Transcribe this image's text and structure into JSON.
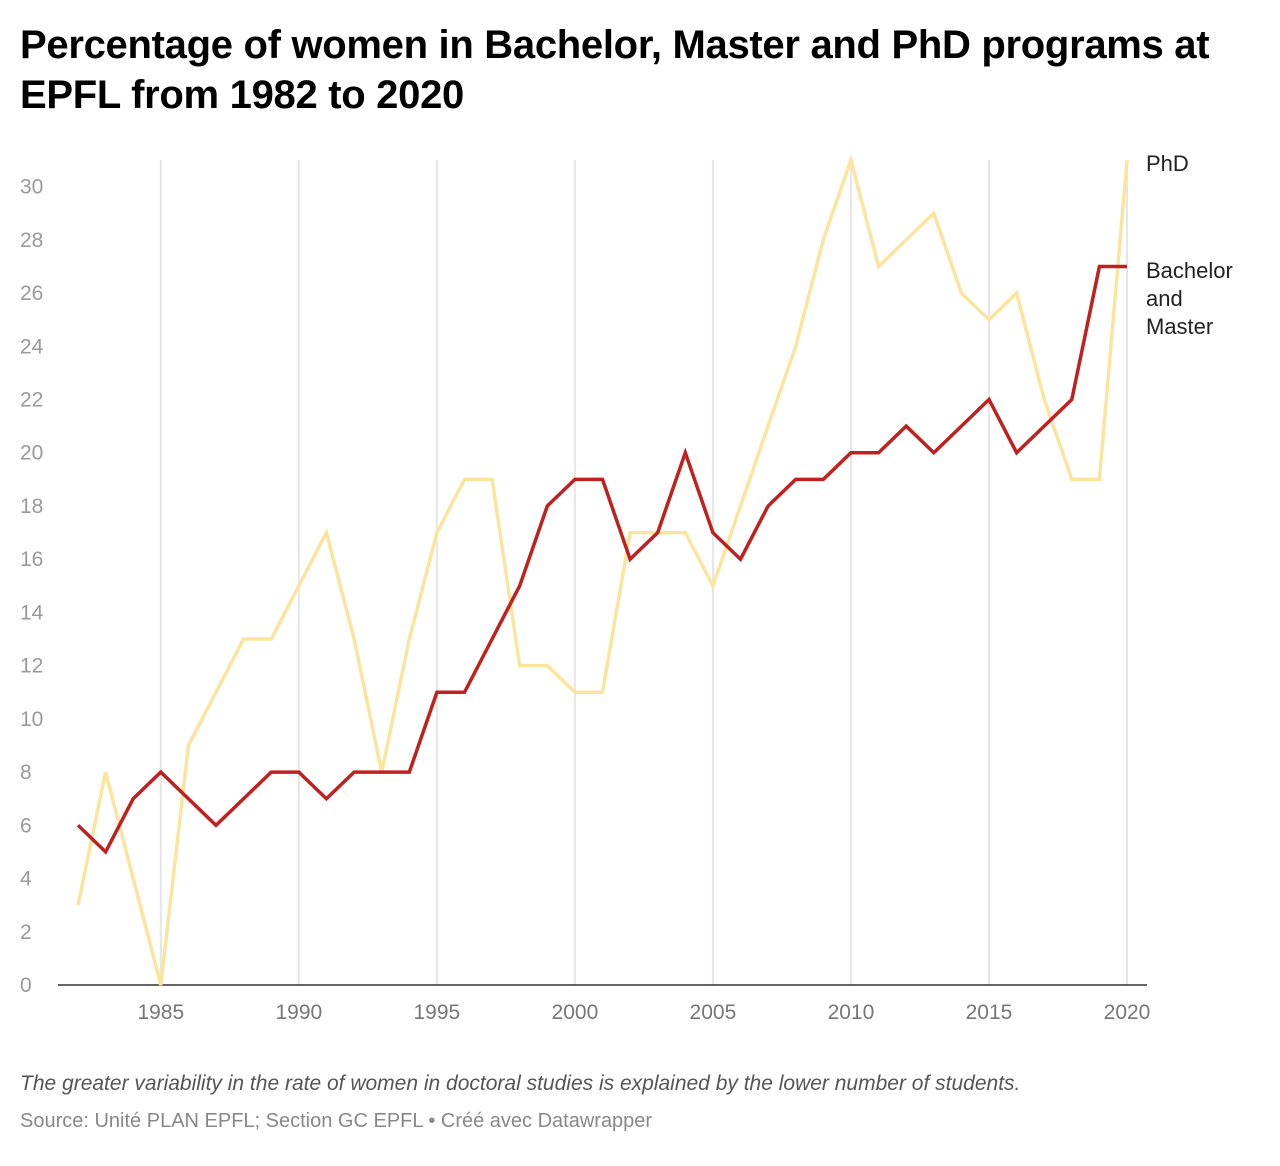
{
  "header": {
    "title": "Percentage of women in Bachelor, Master and PhD programs at EPFL from 1982 to 2020"
  },
  "footer": {
    "note": "The greater variability in the rate of women in doctoral studies is explained by the lower number of students.",
    "source": "Source: Unité PLAN EPFL; Section GC EPFL • Créé avec Datawrapper"
  },
  "chart_data": {
    "type": "line",
    "xlim": [
      1982,
      2020
    ],
    "ylim": [
      0,
      31
    ],
    "x_ticks": [
      1985,
      1990,
      1995,
      2000,
      2005,
      2010,
      2015,
      2020
    ],
    "y_ticks": [
      0,
      2,
      4,
      6,
      8,
      10,
      12,
      14,
      16,
      18,
      20,
      22,
      24,
      26,
      28,
      30
    ],
    "grid": "vertical",
    "legend": "inline-right",
    "x": [
      1982,
      1983,
      1984,
      1985,
      1986,
      1987,
      1988,
      1989,
      1990,
      1991,
      1992,
      1993,
      1994,
      1995,
      1996,
      1997,
      1998,
      1999,
      2000,
      2001,
      2002,
      2003,
      2004,
      2005,
      2006,
      2007,
      2008,
      2009,
      2010,
      2011,
      2012,
      2013,
      2014,
      2015,
      2016,
      2017,
      2018,
      2019,
      2020
    ],
    "series": [
      {
        "name": "PhD",
        "color": "#fde49e",
        "values": [
          3,
          8,
          4,
          0,
          9,
          11,
          13,
          13,
          15,
          17,
          13,
          8,
          13,
          17,
          19,
          19,
          12,
          12,
          11,
          11,
          17,
          17,
          17,
          15,
          18,
          21,
          24,
          28,
          31,
          27,
          28,
          29,
          26,
          25,
          26,
          22,
          19,
          19,
          31
        ]
      },
      {
        "name": "Bachelor and Master",
        "label_lines": [
          "Bachelor",
          "and",
          "Master"
        ],
        "color": "#c0201f",
        "values": [
          6,
          5,
          7,
          8,
          7,
          6,
          7,
          8,
          8,
          7,
          8,
          8,
          8,
          11,
          11,
          13,
          15,
          18,
          19,
          19,
          16,
          17,
          20,
          17,
          16,
          18,
          19,
          19,
          20,
          20,
          21,
          20,
          21,
          22,
          20,
          21,
          22,
          27,
          27
        ]
      }
    ]
  }
}
